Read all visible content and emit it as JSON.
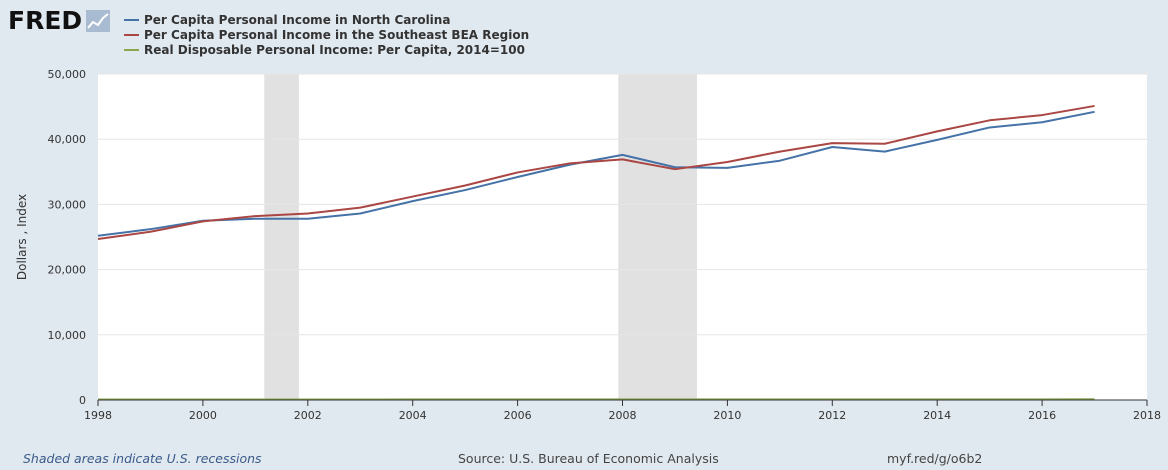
{
  "logo": {
    "text": "FRED"
  },
  "legend": [
    {
      "label": "Per Capita Personal Income in North Carolina",
      "color": "#4572a7"
    },
    {
      "label": "Per Capita Personal Income in the Southeast BEA Region",
      "color": "#aa4643"
    },
    {
      "label": "Real Disposable Personal Income: Per Capita, 2014=100",
      "color": "#89a54e"
    }
  ],
  "footer": {
    "recessions_note": "Shaded areas indicate U.S. recessions",
    "source": "Source: U.S. Bureau of Economic Analysis",
    "url": "myf.red/g/o6b2"
  },
  "chart_data": {
    "type": "line",
    "ylabel": "Dollars , Index",
    "xlim": [
      1998,
      2018
    ],
    "ylim": [
      0,
      50000
    ],
    "x_ticks": [
      "1998",
      "2000",
      "2002",
      "2004",
      "2006",
      "2008",
      "2010",
      "2012",
      "2014",
      "2016",
      "2018"
    ],
    "y_ticks": [
      "0",
      "10,000",
      "20,000",
      "30,000",
      "40,000",
      "50,000"
    ],
    "grid": true,
    "recessions": [
      [
        2001.17,
        2001.83
      ],
      [
        2007.92,
        2009.42
      ]
    ],
    "x": [
      1998,
      1999,
      2000,
      2001,
      2002,
      2003,
      2004,
      2005,
      2006,
      2007,
      2008,
      2009,
      2010,
      2011,
      2012,
      2013,
      2014,
      2015,
      2016,
      2017
    ],
    "series": [
      {
        "name": "Per Capita Personal Income in North Carolina",
        "color": "#4572a7",
        "values": [
          25200,
          26200,
          27500,
          27800,
          27800,
          28600,
          30500,
          32200,
          34200,
          36100,
          37600,
          35700,
          35600,
          36700,
          38800,
          38100,
          39900,
          41800,
          42600,
          44200
        ]
      },
      {
        "name": "Per Capita Personal Income in the Southeast BEA Region",
        "color": "#aa4643",
        "values": [
          24700,
          25800,
          27400,
          28200,
          28600,
          29500,
          31200,
          32900,
          34900,
          36300,
          36900,
          35400,
          36500,
          38100,
          39400,
          39300,
          41200,
          42900,
          43700,
          45100
        ]
      },
      {
        "name": "Real Disposable Personal Income: Per Capita, 2014=100",
        "color": "#89a54e",
        "values": [
          75,
          78,
          82,
          82,
          84,
          85,
          87,
          89,
          91,
          93,
          93,
          92,
          92,
          94,
          95,
          94,
          100,
          103,
          105,
          106
        ]
      }
    ]
  }
}
